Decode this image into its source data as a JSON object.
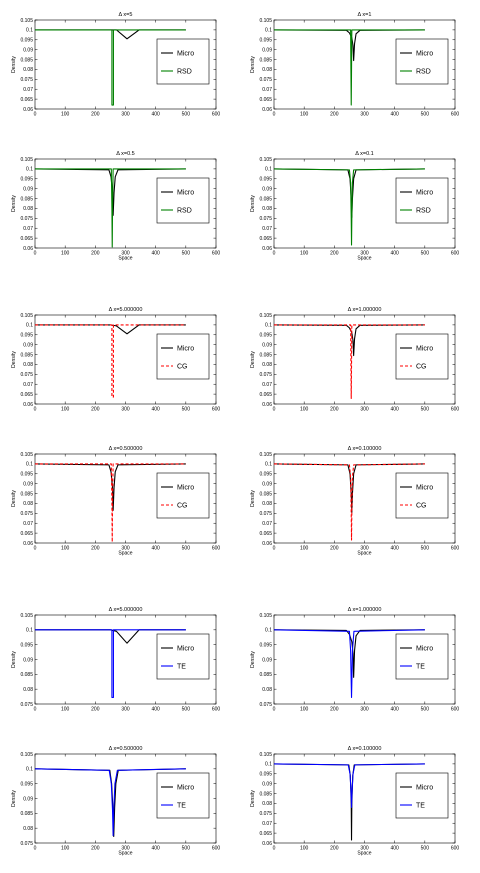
{
  "colors": {
    "micro": "#000000",
    "RSD": "#008000",
    "CG": "#ff0000",
    "TE": "#0000ff"
  },
  "chart_data": [
    {
      "type": "line",
      "title": "Δ x=5",
      "xlabel": "",
      "ylabel": "Density",
      "xlim": [
        0,
        600
      ],
      "ylim": [
        0.06,
        0.105
      ],
      "xticks": [
        "0",
        "100",
        "200",
        "300",
        "400",
        "500",
        "600"
      ],
      "yticks": [
        "0.06",
        "0.065",
        "0.07",
        "0.075",
        "0.08",
        "0.085",
        "0.09",
        "0.095",
        "0.1",
        "0.105"
      ],
      "legend": {
        "placement": "right"
      },
      "grid": false,
      "series": [
        {
          "name": "Micro",
          "color": "#000000",
          "style": "solid",
          "x": [
            0,
            270,
            305,
            345,
            500
          ],
          "y": [
            0.1,
            0.1,
            0.0955,
            0.1,
            0.1
          ]
        },
        {
          "name": "RSD",
          "color": "#008000",
          "style": "solid",
          "x": [
            0,
            255,
            255,
            260,
            260,
            500
          ],
          "y": [
            0.1,
            0.1,
            0.062,
            0.062,
            0.1,
            0.1
          ]
        }
      ]
    },
    {
      "type": "line",
      "title": "Δ x=1",
      "xlabel": "",
      "ylabel": "Density",
      "xlim": [
        0,
        600
      ],
      "ylim": [
        0.06,
        0.105
      ],
      "xticks": [
        "0",
        "100",
        "200",
        "300",
        "400",
        "500",
        "600"
      ],
      "yticks": [
        "0.06",
        "0.065",
        "0.07",
        "0.075",
        "0.08",
        "0.085",
        "0.09",
        "0.095",
        "0.1",
        "0.105"
      ],
      "legend": {
        "placement": "right"
      },
      "grid": false,
      "series": [
        {
          "name": "Micro",
          "color": "#000000",
          "style": "solid",
          "x": [
            0,
            240,
            250,
            258,
            262,
            264,
            267,
            272,
            285,
            500
          ],
          "y": [
            0.1,
            0.0998,
            0.0985,
            0.096,
            0.092,
            0.0845,
            0.093,
            0.098,
            0.0998,
            0.1
          ]
        },
        {
          "name": "RSD",
          "color": "#008000",
          "style": "solid",
          "x": [
            0,
            254,
            255,
            256,
            257,
            258,
            500
          ],
          "y": [
            0.1,
            0.1,
            0.08,
            0.062,
            0.08,
            0.1,
            0.1
          ]
        }
      ]
    },
    {
      "type": "line",
      "title": "Δ x=0.5",
      "xlabel": "Space",
      "ylabel": "Density",
      "xlim": [
        0,
        600
      ],
      "ylim": [
        0.06,
        0.105
      ],
      "xticks": [
        "0",
        "100",
        "200",
        "300",
        "400",
        "500",
        "600"
      ],
      "yticks": [
        "0.06",
        "0.065",
        "0.07",
        "0.075",
        "0.08",
        "0.085",
        "0.09",
        "0.095",
        "0.1",
        "0.105"
      ],
      "legend": {
        "placement": "right"
      },
      "grid": false,
      "series": [
        {
          "name": "Micro",
          "color": "#000000",
          "style": "solid",
          "x": [
            0,
            245,
            252,
            257,
            259,
            262,
            266,
            275,
            500
          ],
          "y": [
            0.1,
            0.0995,
            0.096,
            0.088,
            0.0765,
            0.088,
            0.096,
            0.0995,
            0.1
          ]
        },
        {
          "name": "RSD",
          "color": "#008000",
          "style": "solid",
          "x": [
            0,
            253,
            255,
            256,
            257,
            259,
            500
          ],
          "y": [
            0.1,
            0.1,
            0.08,
            0.0605,
            0.08,
            0.1,
            0.1
          ]
        }
      ]
    },
    {
      "type": "line",
      "title": "Δ x=0.1",
      "xlabel": "Space",
      "ylabel": "Density",
      "xlim": [
        0,
        600
      ],
      "ylim": [
        0.06,
        0.105
      ],
      "xticks": [
        "0",
        "100",
        "200",
        "300",
        "400",
        "500",
        "600"
      ],
      "yticks": [
        "0.06",
        "0.065",
        "0.07",
        "0.075",
        "0.08",
        "0.085",
        "0.09",
        "0.095",
        "0.1",
        "0.105"
      ],
      "legend": {
        "placement": "right"
      },
      "grid": false,
      "series": [
        {
          "name": "Micro",
          "color": "#000000",
          "style": "solid",
          "x": [
            0,
            245,
            252,
            256,
            258,
            260,
            264,
            272,
            500
          ],
          "y": [
            0.1,
            0.0995,
            0.095,
            0.085,
            0.0755,
            0.085,
            0.095,
            0.0995,
            0.1
          ]
        },
        {
          "name": "RSD",
          "color": "#008000",
          "style": "solid",
          "x": [
            0,
            250,
            254,
            256,
            257,
            258,
            260,
            264,
            500
          ],
          "y": [
            0.1,
            0.0995,
            0.093,
            0.075,
            0.0615,
            0.075,
            0.093,
            0.0995,
            0.1
          ]
        }
      ]
    },
    {
      "type": "line",
      "title": "Δ x=5.000000",
      "xlabel": "",
      "ylabel": "Density",
      "xlim": [
        0,
        600
      ],
      "ylim": [
        0.06,
        0.105
      ],
      "xticks": [
        "0",
        "100",
        "200",
        "300",
        "400",
        "500",
        "600"
      ],
      "yticks": [
        "0.06",
        "0.065",
        "0.07",
        "0.075",
        "0.08",
        "0.085",
        "0.09",
        "0.095",
        "0.1",
        "0.105"
      ],
      "legend": {
        "placement": "right"
      },
      "grid": false,
      "series": [
        {
          "name": "Micro",
          "color": "#000000",
          "style": "solid",
          "x": [
            0,
            250,
            270,
            305,
            345,
            500
          ],
          "y": [
            0.1,
            0.1,
            0.0995,
            0.0955,
            0.1,
            0.1
          ]
        },
        {
          "name": "CG",
          "color": "#ff0000",
          "style": "dashed",
          "x": [
            0,
            255,
            255,
            260,
            260,
            500
          ],
          "y": [
            0.1,
            0.1,
            0.0635,
            0.0635,
            0.1,
            0.1
          ]
        }
      ]
    },
    {
      "type": "line",
      "title": "Δ x=1.000000",
      "xlabel": "",
      "ylabel": "Density",
      "xlim": [
        0,
        600
      ],
      "ylim": [
        0.06,
        0.105
      ],
      "xticks": [
        "0",
        "100",
        "200",
        "300",
        "400",
        "500",
        "600"
      ],
      "yticks": [
        "0.06",
        "0.065",
        "0.07",
        "0.075",
        "0.08",
        "0.085",
        "0.09",
        "0.095",
        "0.1",
        "0.105"
      ],
      "legend": {
        "placement": "right"
      },
      "grid": false,
      "series": [
        {
          "name": "Micro",
          "color": "#000000",
          "style": "solid",
          "x": [
            0,
            240,
            250,
            258,
            262,
            264,
            267,
            272,
            285,
            500
          ],
          "y": [
            0.1,
            0.0998,
            0.0985,
            0.096,
            0.092,
            0.0845,
            0.093,
            0.098,
            0.0998,
            0.1
          ]
        },
        {
          "name": "CG",
          "color": "#ff0000",
          "style": "dashed",
          "x": [
            0,
            254,
            255,
            256,
            257,
            258,
            500
          ],
          "y": [
            0.1,
            0.1,
            0.08,
            0.0628,
            0.08,
            0.1,
            0.1
          ]
        }
      ]
    },
    {
      "type": "line",
      "title": "Δ x=0.500000",
      "xlabel": "Space",
      "ylabel": "Density",
      "xlim": [
        0,
        600
      ],
      "ylim": [
        0.06,
        0.105
      ],
      "xticks": [
        "0",
        "100",
        "200",
        "300",
        "400",
        "500",
        "600"
      ],
      "yticks": [
        "0.06",
        "0.065",
        "0.07",
        "0.075",
        "0.08",
        "0.085",
        "0.09",
        "0.095",
        "0.1",
        "0.105"
      ],
      "legend": {
        "placement": "right"
      },
      "grid": false,
      "series": [
        {
          "name": "Micro",
          "color": "#000000",
          "style": "solid",
          "x": [
            0,
            245,
            252,
            257,
            259,
            262,
            266,
            275,
            500
          ],
          "y": [
            0.1,
            0.0995,
            0.096,
            0.088,
            0.0765,
            0.088,
            0.096,
            0.0995,
            0.1
          ]
        },
        {
          "name": "CG",
          "color": "#ff0000",
          "style": "dashed",
          "x": [
            0,
            253,
            255,
            256,
            257,
            259,
            500
          ],
          "y": [
            0.1,
            0.1,
            0.08,
            0.0605,
            0.08,
            0.1,
            0.1
          ]
        }
      ]
    },
    {
      "type": "line",
      "title": "Δ x=0.100000",
      "xlabel": "Space",
      "ylabel": "Density",
      "xlim": [
        0,
        600
      ],
      "ylim": [
        0.06,
        0.105
      ],
      "xticks": [
        "0",
        "100",
        "200",
        "300",
        "400",
        "500",
        "600"
      ],
      "yticks": [
        "0.06",
        "0.065",
        "0.07",
        "0.075",
        "0.08",
        "0.085",
        "0.09",
        "0.095",
        "0.1",
        "0.105"
      ],
      "legend": {
        "placement": "right"
      },
      "grid": false,
      "series": [
        {
          "name": "Micro",
          "color": "#000000",
          "style": "solid",
          "x": [
            0,
            245,
            252,
            256,
            258,
            260,
            264,
            272,
            500
          ],
          "y": [
            0.1,
            0.0995,
            0.095,
            0.085,
            0.0755,
            0.085,
            0.095,
            0.0995,
            0.1
          ]
        },
        {
          "name": "CG",
          "color": "#ff0000",
          "style": "dashed",
          "x": [
            0,
            250,
            254,
            256,
            257,
            258,
            260,
            264,
            500
          ],
          "y": [
            0.1,
            0.0995,
            0.093,
            0.075,
            0.0615,
            0.075,
            0.093,
            0.0995,
            0.1
          ]
        }
      ]
    },
    {
      "type": "line",
      "title": "Δ x=5.000000",
      "xlabel": "",
      "ylabel": "Density",
      "xlim": [
        0,
        600
      ],
      "ylim": [
        0.075,
        0.105
      ],
      "xticks": [
        "0",
        "100",
        "200",
        "300",
        "400",
        "500",
        "600"
      ],
      "yticks": [
        "0.075",
        "0.08",
        "0.085",
        "0.09",
        "0.095",
        "0.1",
        "0.105"
      ],
      "legend": {
        "placement": "right"
      },
      "grid": false,
      "series": [
        {
          "name": "Micro",
          "color": "#000000",
          "style": "solid",
          "x": [
            0,
            250,
            270,
            305,
            345,
            500
          ],
          "y": [
            0.1,
            0.1,
            0.0995,
            0.0955,
            0.1,
            0.1
          ]
        },
        {
          "name": "TE",
          "color": "#0000ff",
          "style": "solid",
          "x": [
            0,
            255,
            255,
            260,
            260,
            500
          ],
          "y": [
            0.1,
            0.1,
            0.0772,
            0.0772,
            0.1,
            0.1
          ]
        }
      ]
    },
    {
      "type": "line",
      "title": "Δ x=1.000000",
      "xlabel": "",
      "ylabel": "Density",
      "xlim": [
        0,
        600
      ],
      "ylim": [
        0.075,
        0.105
      ],
      "xticks": [
        "0",
        "100",
        "200",
        "300",
        "400",
        "500",
        "600"
      ],
      "yticks": [
        "0.075",
        "0.08",
        "0.085",
        "0.09",
        "0.095",
        "0.1",
        "0.105"
      ],
      "legend": {
        "placement": "right"
      },
      "grid": false,
      "series": [
        {
          "name": "Micro",
          "color": "#000000",
          "style": "solid",
          "x": [
            0,
            240,
            250,
            258,
            262,
            264,
            267,
            272,
            285,
            500
          ],
          "y": [
            0.1,
            0.0998,
            0.0985,
            0.096,
            0.092,
            0.084,
            0.093,
            0.098,
            0.0998,
            0.1
          ]
        },
        {
          "name": "TE",
          "color": "#0000ff",
          "style": "solid",
          "x": [
            0,
            250,
            254,
            256,
            257,
            258,
            260,
            265,
            500
          ],
          "y": [
            0.1,
            0.0995,
            0.093,
            0.082,
            0.0772,
            0.082,
            0.093,
            0.0995,
            0.1
          ]
        }
      ]
    },
    {
      "type": "line",
      "title": "Δ x=0.500000",
      "xlabel": "Space",
      "ylabel": "Density",
      "xlim": [
        0,
        600
      ],
      "ylim": [
        0.075,
        0.105
      ],
      "xticks": [
        "0",
        "100",
        "200",
        "300",
        "400",
        "500",
        "600"
      ],
      "yticks": [
        "0.075",
        "0.08",
        "0.085",
        "0.09",
        "0.095",
        "0.1",
        "0.105"
      ],
      "legend": {
        "placement": "right"
      },
      "grid": false,
      "series": [
        {
          "name": "Micro",
          "color": "#000000",
          "style": "solid",
          "x": [
            0,
            248,
            254,
            258,
            261,
            264,
            268,
            276,
            500
          ],
          "y": [
            0.1,
            0.0995,
            0.095,
            0.087,
            0.0772,
            0.087,
            0.095,
            0.0995,
            0.1
          ]
        },
        {
          "name": "TE",
          "color": "#0000ff",
          "style": "solid",
          "x": [
            0,
            246,
            253,
            257,
            259,
            261,
            265,
            273,
            500
          ],
          "y": [
            0.1,
            0.0995,
            0.095,
            0.086,
            0.0775,
            0.086,
            0.095,
            0.0995,
            0.1
          ]
        }
      ]
    },
    {
      "type": "line",
      "title": "Δ x=0.100000",
      "xlabel": "Space",
      "ylabel": "Density",
      "xlim": [
        0,
        600
      ],
      "ylim": [
        0.06,
        0.105
      ],
      "xticks": [
        "0",
        "100",
        "200",
        "300",
        "400",
        "500",
        "600"
      ],
      "yticks": [
        "0.06",
        "0.065",
        "0.07",
        "0.075",
        "0.08",
        "0.085",
        "0.09",
        "0.095",
        "0.1",
        "0.105"
      ],
      "legend": {
        "placement": "right"
      },
      "grid": false,
      "series": [
        {
          "name": "Micro",
          "color": "#000000",
          "style": "solid",
          "x": [
            0,
            248,
            253,
            256,
            257,
            258,
            261,
            266,
            500
          ],
          "y": [
            0.1,
            0.0995,
            0.094,
            0.08,
            0.0615,
            0.08,
            0.094,
            0.0995,
            0.1
          ]
        },
        {
          "name": "TE",
          "color": "#0000ff",
          "style": "solid",
          "x": [
            0,
            246,
            252,
            255,
            257,
            259,
            262,
            268,
            500
          ],
          "y": [
            0.1,
            0.0995,
            0.095,
            0.087,
            0.078,
            0.087,
            0.095,
            0.0995,
            0.1
          ]
        }
      ]
    }
  ]
}
